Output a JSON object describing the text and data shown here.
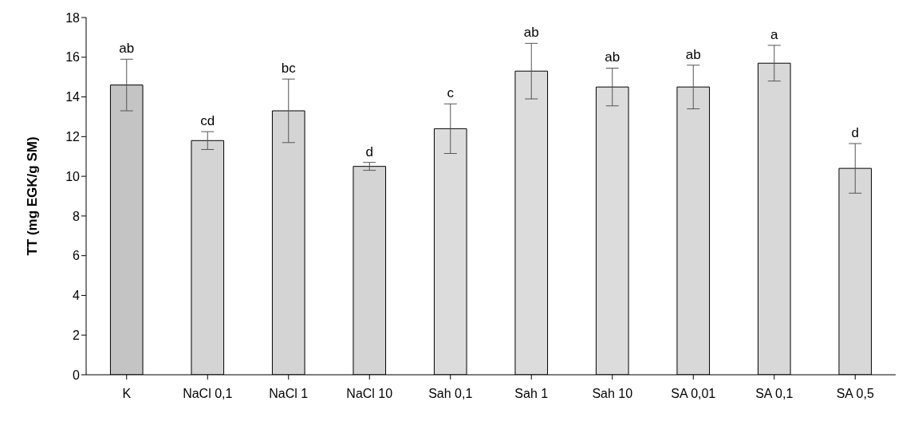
{
  "chart_data": {
    "type": "bar",
    "ylabel": "TT (mg EGK/g SM)",
    "categories": [
      "K",
      "NaCl 0,1",
      "NaCl 1",
      "NaCl 10",
      "Sah 0,1",
      "Sah 1",
      "Sah 10",
      "SA 0,01",
      "SA 0,1",
      "SA 0,5"
    ],
    "values": [
      14.6,
      11.8,
      13.3,
      10.5,
      12.4,
      15.3,
      14.5,
      14.5,
      15.7,
      10.4
    ],
    "errors": [
      1.3,
      0.45,
      1.6,
      0.2,
      1.25,
      1.4,
      0.95,
      1.1,
      0.9,
      1.25
    ],
    "colors": [
      "#c4c4c4",
      "#d4d4d4",
      "#d4d4d4",
      "#d4d4d4",
      "#dcdcdc",
      "#dcdcdc",
      "#dcdcdc",
      "#d8d8d8",
      "#d8d8d8",
      "#d8d8d8"
    ],
    "ylim": [
      0,
      18
    ],
    "yticks": [
      0,
      2,
      4,
      6,
      8,
      10,
      12,
      14,
      16,
      18
    ],
    "annotations": [
      {
        "text": "ab",
        "x": "K",
        "y": 15.9
      },
      {
        "text": "cd",
        "x": "NaCl 0,1",
        "y": 12.25
      },
      {
        "text": "bc",
        "x": "NaCl 1",
        "y": 14.9
      },
      {
        "text": "d",
        "x": "NaCl 10",
        "y": 10.7
      },
      {
        "text": "c",
        "x": "Sah 0,1",
        "y": 13.65
      },
      {
        "text": "ab",
        "x": "Sah 1",
        "y": 16.7
      },
      {
        "text": "ab",
        "x": "Sah 10",
        "y": 15.45
      },
      {
        "text": "ab",
        "x": "SA 0,01",
        "y": 15.6
      },
      {
        "text": "a",
        "x": "SA 0,1",
        "y": 16.6
      },
      {
        "text": "d",
        "x": "SA 0,5",
        "y": 11.65
      }
    ]
  }
}
